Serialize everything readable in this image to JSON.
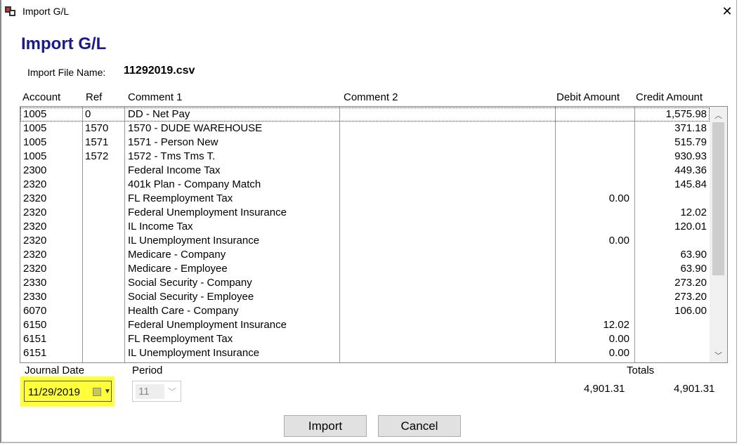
{
  "window": {
    "title": "Import G/L",
    "close_icon": "close-icon"
  },
  "heading": "Import G/L",
  "file": {
    "label": "Import File Name:",
    "value": "11292019.csv"
  },
  "columns": [
    "Account",
    "Ref",
    "Comment 1",
    "Comment 2",
    "Debit Amount",
    "Credit Amount"
  ],
  "rows": [
    {
      "account": "1005",
      "ref": "0",
      "comment1": "DD - Net Pay",
      "comment2": "",
      "debit": "",
      "credit": "1,575.98"
    },
    {
      "account": "1005",
      "ref": "1570",
      "comment1": "1570 - DUDE WAREHOUSE",
      "comment2": "",
      "debit": "",
      "credit": "371.18"
    },
    {
      "account": "1005",
      "ref": "1571",
      "comment1": "1571 - Person New",
      "comment2": "",
      "debit": "",
      "credit": "515.79"
    },
    {
      "account": "1005",
      "ref": "1572",
      "comment1": "1572 - Tms Tms T.",
      "comment2": "",
      "debit": "",
      "credit": "930.93"
    },
    {
      "account": "2300",
      "ref": "",
      "comment1": "Federal Income Tax",
      "comment2": "",
      "debit": "",
      "credit": "449.36"
    },
    {
      "account": "2320",
      "ref": "",
      "comment1": "401k Plan - Company Match",
      "comment2": "",
      "debit": "",
      "credit": "145.84"
    },
    {
      "account": "2320",
      "ref": "",
      "comment1": "FL Reemployment Tax",
      "comment2": "",
      "debit": "0.00",
      "credit": ""
    },
    {
      "account": "2320",
      "ref": "",
      "comment1": "Federal Unemployment Insurance",
      "comment2": "",
      "debit": "",
      "credit": "12.02"
    },
    {
      "account": "2320",
      "ref": "",
      "comment1": "IL Income Tax",
      "comment2": "",
      "debit": "",
      "credit": "120.01"
    },
    {
      "account": "2320",
      "ref": "",
      "comment1": "IL Unemployment Insurance",
      "comment2": "",
      "debit": "0.00",
      "credit": ""
    },
    {
      "account": "2320",
      "ref": "",
      "comment1": "Medicare - Company",
      "comment2": "",
      "debit": "",
      "credit": "63.90"
    },
    {
      "account": "2320",
      "ref": "",
      "comment1": "Medicare - Employee",
      "comment2": "",
      "debit": "",
      "credit": "63.90"
    },
    {
      "account": "2330",
      "ref": "",
      "comment1": "Social Security - Company",
      "comment2": "",
      "debit": "",
      "credit": "273.20"
    },
    {
      "account": "2330",
      "ref": "",
      "comment1": "Social Security - Employee",
      "comment2": "",
      "debit": "",
      "credit": "273.20"
    },
    {
      "account": "6070",
      "ref": "",
      "comment1": "Health Care - Company",
      "comment2": "",
      "debit": "",
      "credit": "106.00"
    },
    {
      "account": "6150",
      "ref": "",
      "comment1": "Federal Unemployment Insurance",
      "comment2": "",
      "debit": "12.02",
      "credit": ""
    },
    {
      "account": "6151",
      "ref": "",
      "comment1": "FL Reemployment Tax",
      "comment2": "",
      "debit": "0.00",
      "credit": ""
    },
    {
      "account": "6151",
      "ref": "",
      "comment1": "IL Unemployment Insurance",
      "comment2": "",
      "debit": "0.00",
      "credit": ""
    }
  ],
  "journal_date": {
    "label": "Journal Date",
    "value": "11/29/2019",
    "highlight": "#ffff3a"
  },
  "period": {
    "label": "Period",
    "value": "11"
  },
  "totals": {
    "label": "Totals",
    "debit": "4,901.31",
    "credit": "4,901.31"
  },
  "buttons": {
    "import": "Import",
    "cancel": "Cancel"
  },
  "colors": {
    "heading": "#1a1a8c"
  }
}
